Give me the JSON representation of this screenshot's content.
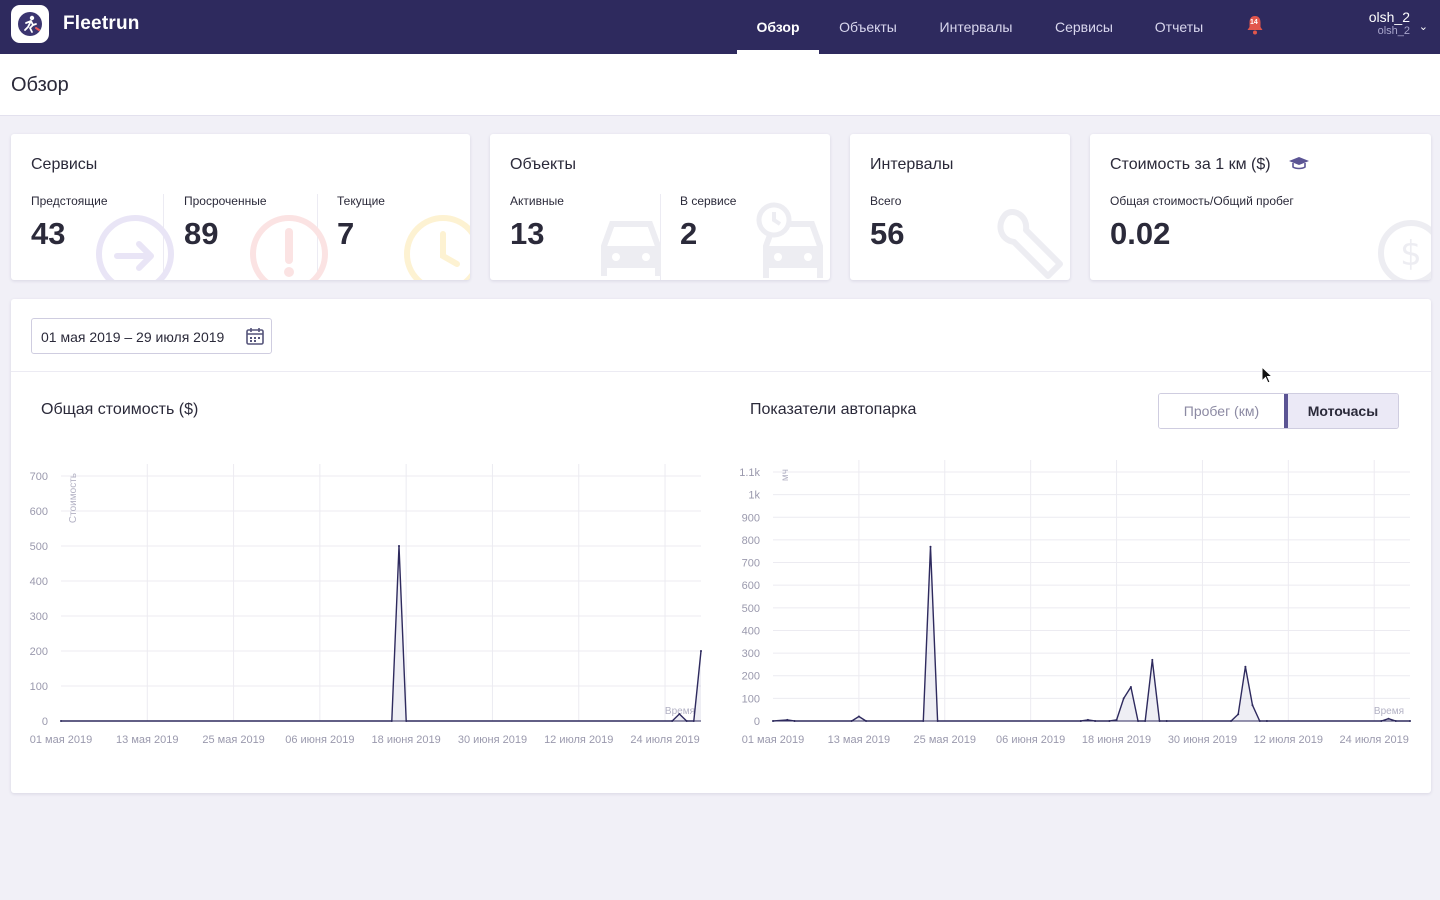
{
  "app": {
    "brand": "Fleetrun"
  },
  "nav": {
    "items": [
      "Обзор",
      "Объекты",
      "Интервалы",
      "Сервисы",
      "Отчеты"
    ],
    "active": "Обзор"
  },
  "notifications": {
    "count": "14"
  },
  "user": {
    "name": "olsh_2",
    "sub": "olsh_2"
  },
  "page": {
    "title": "Обзор"
  },
  "cards": {
    "services": {
      "title": "Сервисы",
      "upcoming_label": "Предстоящие",
      "upcoming_value": "43",
      "overdue_label": "Просроченные",
      "overdue_value": "89",
      "current_label": "Текущие",
      "current_value": "7"
    },
    "objects": {
      "title": "Объекты",
      "active_label": "Активные",
      "active_value": "13",
      "in_service_label": "В сервисе",
      "in_service_value": "2"
    },
    "intervals": {
      "title": "Интервалы",
      "total_label": "Всего",
      "total_value": "56"
    },
    "cost": {
      "title": "Стоимость за 1 км ($)",
      "sub_label": "Общая стоимость/Общий пробег",
      "value": "0.02"
    }
  },
  "date_range": {
    "value": "01 мая 2019 – 29 июля 2019"
  },
  "toggle": {
    "mileage": "Пробег (км)",
    "engine_hours": "Моточасы",
    "active": "Моточасы"
  },
  "colors": {
    "topbar": "#2e2a5e",
    "line": "#2e2a5e",
    "accent": "#5b5494"
  },
  "chart_data": [
    {
      "type": "line",
      "title": "Общая стоимость ($)",
      "ylabel": "Стоимость",
      "xlabel": "Время",
      "ylim": [
        0,
        700
      ],
      "yticks": [
        "0",
        "100",
        "200",
        "300",
        "400",
        "500",
        "600",
        "700"
      ],
      "xticks": [
        "01 мая 2019",
        "13 мая 2019",
        "25 мая 2019",
        "06 июня 2019",
        "18 июня 2019",
        "30 июня 2019",
        "12 июля 2019",
        "24 июля 2019"
      ],
      "x_start": "2019-05-01",
      "x_end": "2019-07-29",
      "x": [
        "2019-05-01",
        "2019-06-16",
        "2019-06-17",
        "2019-06-18",
        "2019-07-25",
        "2019-07-26",
        "2019-07-27",
        "2019-07-28",
        "2019-07-29"
      ],
      "values": [
        0,
        0,
        500,
        0,
        0,
        20,
        0,
        0,
        200
      ]
    },
    {
      "type": "line",
      "title": "Показатели автопарка",
      "ylabel": "мч",
      "xlabel": "Время",
      "ylim": [
        0,
        1100
      ],
      "yticks": [
        "0",
        "100",
        "200",
        "300",
        "400",
        "500",
        "600",
        "700",
        "800",
        "900",
        "1k",
        "1.1k"
      ],
      "xticks": [
        "01 мая 2019",
        "13 мая 2019",
        "25 мая 2019",
        "06 июня 2019",
        "18 июня 2019",
        "30 июня 2019",
        "12 июля 2019",
        "24 июля 2019"
      ],
      "x_start": "2019-05-01",
      "x_end": "2019-07-29",
      "x": [
        "2019-05-01",
        "2019-05-03",
        "2019-05-04",
        "2019-05-12",
        "2019-05-13",
        "2019-05-14",
        "2019-05-22",
        "2019-05-23",
        "2019-05-24",
        "2019-06-13",
        "2019-06-14",
        "2019-06-15",
        "2019-06-17",
        "2019-06-18",
        "2019-06-19",
        "2019-06-20",
        "2019-06-21",
        "2019-06-22",
        "2019-06-23",
        "2019-06-24",
        "2019-06-25",
        "2019-07-04",
        "2019-07-05",
        "2019-07-06",
        "2019-07-07",
        "2019-07-08",
        "2019-07-09",
        "2019-07-25",
        "2019-07-26",
        "2019-07-27",
        "2019-07-29"
      ],
      "values": [
        0,
        5,
        0,
        0,
        20,
        0,
        0,
        770,
        0,
        0,
        5,
        0,
        0,
        5,
        100,
        150,
        0,
        0,
        270,
        0,
        0,
        0,
        30,
        240,
        70,
        0,
        0,
        0,
        10,
        0,
        0
      ]
    }
  ]
}
